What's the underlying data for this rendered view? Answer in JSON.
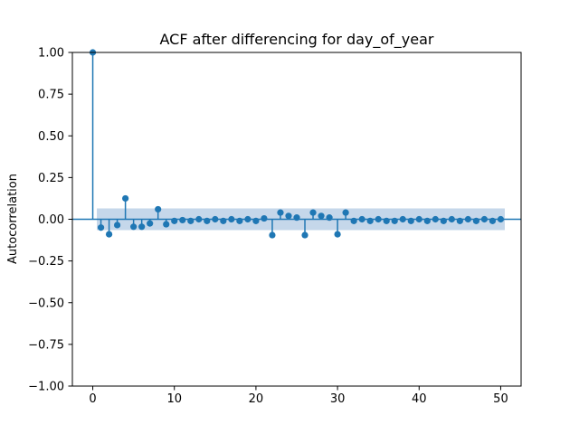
{
  "chart_data": {
    "type": "stem",
    "title": "ACF after differencing for day_of_year",
    "xlabel": "",
    "ylabel": "Autocorrelation",
    "xlim": [
      -2.5,
      52.5
    ],
    "ylim": [
      -1.0,
      1.0
    ],
    "x_ticks": [
      0,
      10,
      20,
      30,
      40,
      50
    ],
    "y_ticks": [
      -1.0,
      -0.75,
      -0.5,
      -0.25,
      0.0,
      0.25,
      0.5,
      0.75,
      1.0
    ],
    "x_tick_labels": [
      "0",
      "10",
      "20",
      "30",
      "40",
      "50"
    ],
    "y_tick_labels": [
      "−1.00",
      "−0.75",
      "−0.50",
      "−0.25",
      "0.00",
      "0.25",
      "0.50",
      "0.75",
      "1.00"
    ],
    "grid": false,
    "colors": {
      "series": "#1f77b4",
      "band": "#c5d7ea"
    },
    "confidence_band": {
      "lag_start": 0.5,
      "lag_end": 50.5,
      "upper": 0.065,
      "lower": -0.065
    },
    "series": [
      {
        "lags": [
          0,
          1,
          2,
          3,
          4,
          5,
          6,
          7,
          8,
          9,
          10,
          11,
          12,
          13,
          14,
          15,
          16,
          17,
          18,
          19,
          20,
          21,
          22,
          23,
          24,
          25,
          26,
          27,
          28,
          29,
          30,
          31,
          32,
          33,
          34,
          35,
          36,
          37,
          38,
          39,
          40,
          41,
          42,
          43,
          44,
          45,
          46,
          47,
          48,
          49,
          50
        ],
        "values": [
          1.0,
          -0.05,
          -0.09,
          -0.035,
          0.125,
          -0.045,
          -0.045,
          -0.025,
          0.06,
          -0.03,
          -0.01,
          -0.005,
          -0.01,
          0.0,
          -0.01,
          0.0,
          -0.01,
          0.0,
          -0.01,
          0.0,
          -0.01,
          0.005,
          -0.095,
          0.04,
          0.02,
          0.01,
          -0.095,
          0.04,
          0.02,
          0.01,
          -0.09,
          0.04,
          -0.01,
          0.0,
          -0.01,
          0.0,
          -0.01,
          -0.01,
          0.0,
          -0.01,
          0.0,
          -0.01,
          0.0,
          -0.01,
          0.0,
          -0.01,
          0.0,
          -0.01,
          0.0,
          -0.01,
          0.0
        ]
      }
    ]
  }
}
